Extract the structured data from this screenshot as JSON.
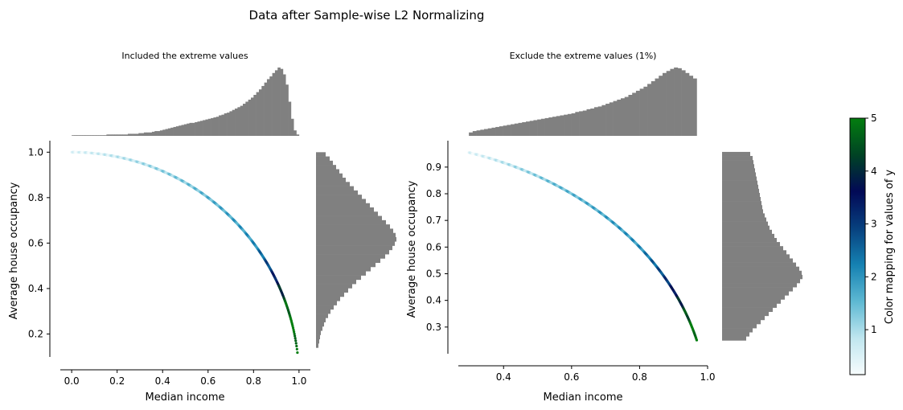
{
  "figure": {
    "suptitle": "Data after Sample-wise L2 Normalizing"
  },
  "chart_data": [
    {
      "type": "scatter",
      "title": "Included the extreme values",
      "xlabel": "Median income",
      "ylabel": "Average house occupancy",
      "xlim": [
        -0.05,
        1.05
      ],
      "ylim": [
        0.06,
        1.04
      ],
      "xticks": [
        0.0,
        0.2,
        0.4,
        0.6,
        0.8,
        1.0
      ],
      "xtick_labels": [
        "0.0",
        "0.2",
        "0.4",
        "0.6",
        "0.8",
        "1.0"
      ],
      "yticks": [
        0.2,
        0.4,
        0.6,
        0.8,
        1.0
      ],
      "ytick_labels": [
        "0.2",
        "0.4",
        "0.6",
        "0.8",
        "1.0"
      ],
      "curve": {
        "x_from": 0.0,
        "x_to": 0.993,
        "relation": "y = sqrt(1 - x^2)"
      },
      "color_by_x": [
        [
          0.0,
          0.3
        ],
        [
          0.55,
          1.4
        ],
        [
          0.8,
          2.0
        ],
        [
          0.88,
          3.0
        ],
        [
          0.92,
          4.0
        ],
        [
          0.96,
          5.0
        ]
      ],
      "marginal_x_hist": {
        "bin_range": [
          0.0,
          1.0
        ],
        "counts": [
          0.0,
          0.01,
          0.01,
          0.01,
          0.01,
          0.01,
          0.01,
          0.01,
          0.01,
          0.01,
          0.01,
          0.01,
          0.01,
          0.02,
          0.02,
          0.02,
          0.02,
          0.02,
          0.02,
          0.02,
          0.02,
          0.03,
          0.03,
          0.03,
          0.03,
          0.04,
          0.04,
          0.05,
          0.05,
          0.05,
          0.06,
          0.07,
          0.07,
          0.08,
          0.09,
          0.1,
          0.11,
          0.12,
          0.13,
          0.14,
          0.15,
          0.16,
          0.17,
          0.18,
          0.19,
          0.19,
          0.2,
          0.21,
          0.22,
          0.23,
          0.24,
          0.25,
          0.26,
          0.27,
          0.28,
          0.3,
          0.31,
          0.33,
          0.34,
          0.36,
          0.38,
          0.4,
          0.42,
          0.44,
          0.47,
          0.5,
          0.53,
          0.56,
          0.6,
          0.64,
          0.68,
          0.73,
          0.78,
          0.83,
          0.87,
          0.92,
          0.96,
          1.0,
          0.98,
          0.9,
          0.75,
          0.5,
          0.25,
          0.08,
          0.02
        ]
      },
      "marginal_y_hist": {
        "bin_range": [
          0.14,
          1.0
        ],
        "counts": [
          0.03,
          0.04,
          0.05,
          0.06,
          0.08,
          0.1,
          0.12,
          0.15,
          0.18,
          0.22,
          0.26,
          0.3,
          0.35,
          0.4,
          0.45,
          0.5,
          0.56,
          0.62,
          0.68,
          0.74,
          0.8,
          0.86,
          0.91,
          0.95,
          0.98,
          1.0,
          0.99,
          0.96,
          0.92,
          0.87,
          0.82,
          0.77,
          0.72,
          0.67,
          0.62,
          0.57,
          0.52,
          0.47,
          0.42,
          0.37,
          0.33,
          0.29,
          0.25,
          0.21,
          0.17,
          0.12
        ]
      }
    },
    {
      "type": "scatter",
      "title": "Exclude the extreme values (1%)",
      "xlabel": "Median income",
      "ylabel": "Average house occupancy",
      "xlim": [
        0.267,
        1.0
      ],
      "ylim": [
        0.215,
        0.99
      ],
      "xticks": [
        0.4,
        0.6,
        0.8,
        1.0
      ],
      "xtick_labels": [
        "0.4",
        "0.6",
        "0.8",
        "1.0"
      ],
      "yticks": [
        0.3,
        0.4,
        0.5,
        0.6,
        0.7,
        0.8,
        0.9
      ],
      "ytick_labels": [
        "0.3",
        "0.4",
        "0.5",
        "0.6",
        "0.7",
        "0.8",
        "0.9"
      ],
      "curve": {
        "x_from": 0.298,
        "x_to": 0.968,
        "relation": "y = sqrt(1 - x^2)"
      },
      "color_by_x": [
        [
          0.298,
          0.3
        ],
        [
          0.55,
          1.4
        ],
        [
          0.8,
          2.0
        ],
        [
          0.88,
          3.0
        ],
        [
          0.92,
          4.0
        ],
        [
          0.96,
          5.0
        ]
      ],
      "marginal_x_hist": {
        "bin_range": [
          0.298,
          0.968
        ],
        "counts": [
          0.05,
          0.07,
          0.08,
          0.09,
          0.1,
          0.11,
          0.12,
          0.13,
          0.14,
          0.15,
          0.16,
          0.17,
          0.18,
          0.19,
          0.2,
          0.21,
          0.22,
          0.23,
          0.24,
          0.25,
          0.26,
          0.27,
          0.28,
          0.29,
          0.3,
          0.31,
          0.32,
          0.33,
          0.35,
          0.36,
          0.37,
          0.39,
          0.4,
          0.42,
          0.43,
          0.45,
          0.47,
          0.49,
          0.51,
          0.53,
          0.55,
          0.57,
          0.6,
          0.63,
          0.66,
          0.69,
          0.72,
          0.76,
          0.8,
          0.84,
          0.88,
          0.92,
          0.95,
          0.98,
          1.0,
          0.99,
          0.96,
          0.92,
          0.88,
          0.84
        ]
      },
      "marginal_y_hist": {
        "bin_range": [
          0.25,
          0.957
        ],
        "counts": [
          0.3,
          0.34,
          0.38,
          0.43,
          0.48,
          0.53,
          0.58,
          0.63,
          0.68,
          0.73,
          0.78,
          0.83,
          0.88,
          0.93,
          0.97,
          1.0,
          0.99,
          0.96,
          0.92,
          0.88,
          0.84,
          0.8,
          0.76,
          0.72,
          0.68,
          0.65,
          0.62,
          0.59,
          0.57,
          0.55,
          0.53,
          0.51,
          0.5,
          0.49,
          0.48,
          0.47,
          0.46,
          0.45,
          0.44,
          0.43,
          0.42,
          0.41,
          0.4,
          0.39,
          0.38,
          0.35
        ]
      }
    }
  ],
  "colorbar": {
    "label": "Color mapping for values of y",
    "range": [
      0.15,
      5.0
    ],
    "ticks": [
      1,
      2,
      3,
      4,
      5
    ],
    "tick_labels": [
      "1",
      "2",
      "3",
      "4",
      "5"
    ],
    "colormap": [
      "#f7fcfd",
      "#bfe6ef",
      "#5db8d2",
      "#1581b2",
      "#07407e",
      "#020956",
      "#004324",
      "#037e0f"
    ]
  },
  "colors": {
    "histogram": "#808080",
    "axis": "#000000"
  }
}
